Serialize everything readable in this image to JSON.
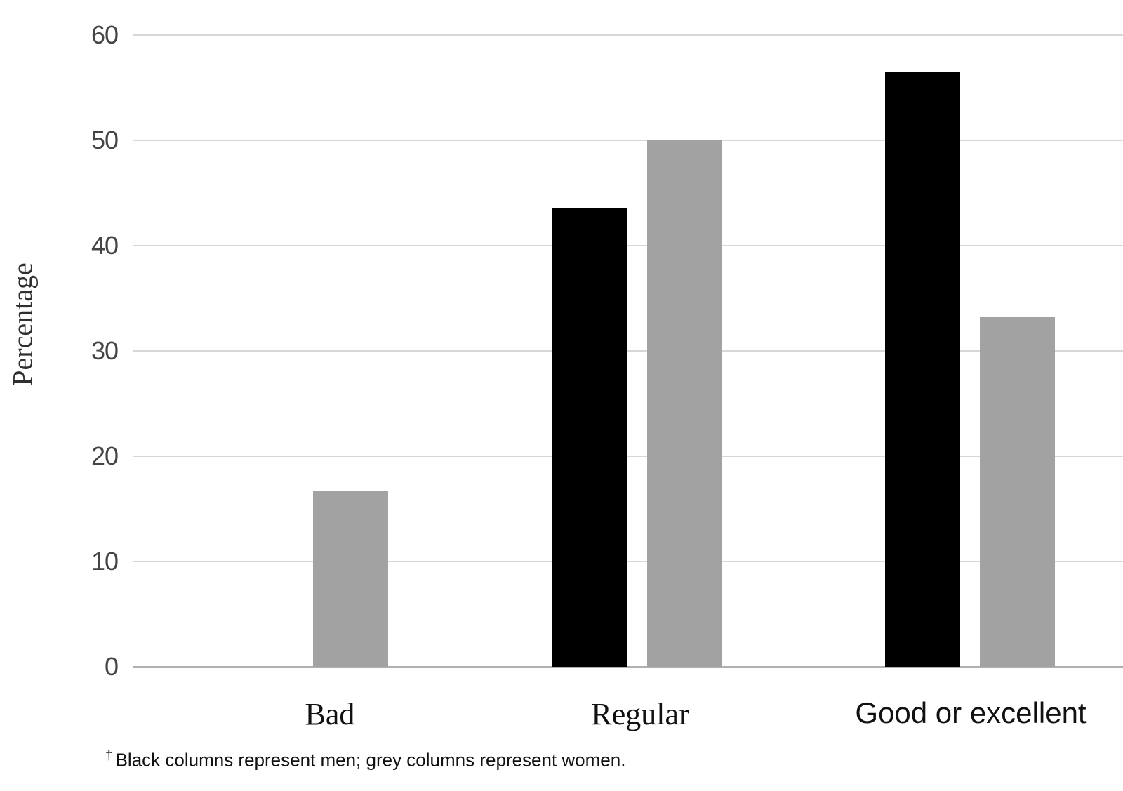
{
  "chart_data": {
    "type": "bar",
    "title": "",
    "xlabel": "",
    "ylabel": "Percentage",
    "categories": [
      "Bad",
      "Regular",
      "Good or excellent"
    ],
    "series": [
      {
        "name": "Men",
        "color": "#000000",
        "values": [
          0,
          43.5,
          56.5
        ]
      },
      {
        "name": "Women",
        "color": "#a2a2a2",
        "values": [
          16.7,
          50,
          33.3
        ]
      }
    ],
    "ylim": [
      0,
      60
    ],
    "yticks": [
      0,
      10,
      20,
      30,
      40,
      50,
      60
    ],
    "grid": "horizontal",
    "legend_position": "none",
    "legend_note": "Black columns represent men; grey columns represent women."
  },
  "footnote": {
    "marker": "†",
    "text": "Black columns represent men; grey columns represent women."
  },
  "colors": {
    "men_bar": "#000000",
    "women_bar": "#a2a2a2",
    "gridline": "#d7d7d7",
    "baseline": "#b0b0b0",
    "tick_text": "#454545",
    "background": "#ffffff"
  }
}
